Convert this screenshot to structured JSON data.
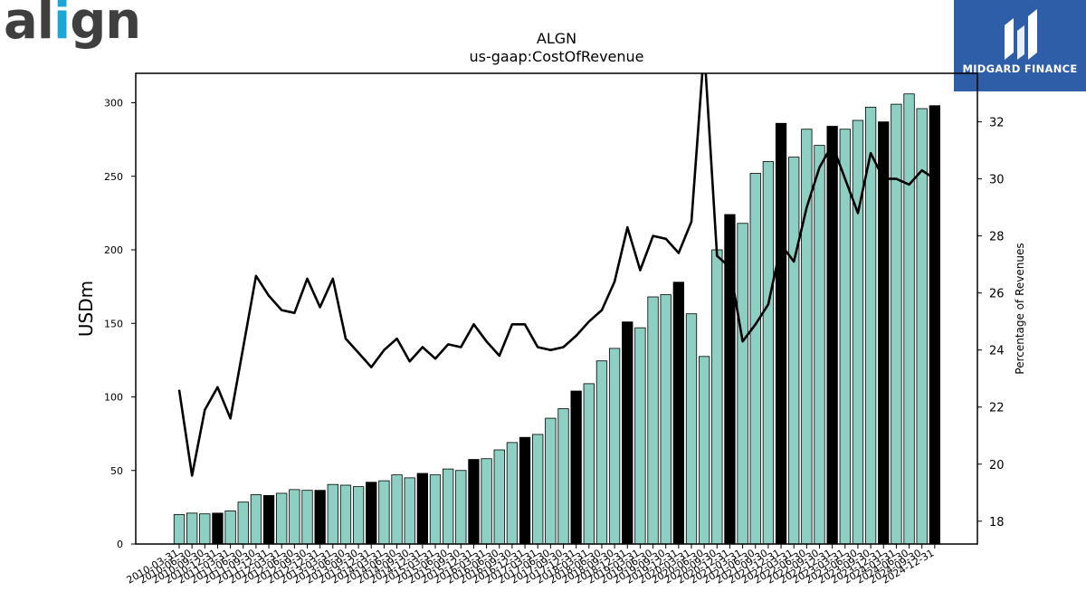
{
  "logo": {
    "text_start": "al",
    "text_dot": "i",
    "text_end": "gn"
  },
  "sponsor": {
    "name": "MIDGARD FINANCE"
  },
  "colors": {
    "bar_normal": "#8ecfc4",
    "bar_q4": "#000000",
    "line": "#000000",
    "sponsor_bg": "#2e5ea8",
    "logo_accent": "#1aa7d8"
  },
  "chart_data": {
    "type": "bar",
    "title": "ALGN",
    "subtitle": "us-gaap:CostOfRevenue",
    "ylabel": "USDm",
    "y2label": "Percentage of Revenues",
    "ylim": [
      0,
      320
    ],
    "y2lim": [
      17.2,
      33.7
    ],
    "yticks": [
      0,
      50,
      100,
      150,
      200,
      250,
      300
    ],
    "y2ticks": [
      18,
      20,
      22,
      24,
      26,
      28,
      30,
      32
    ],
    "grid": false,
    "legend": "none",
    "categories": [
      "2010-03-31",
      "2010-06-30",
      "2010-09-30",
      "2010-12-31",
      "2011-03-31",
      "2011-06-30",
      "2011-09-30",
      "2011-12-31",
      "2012-03-31",
      "2012-06-30",
      "2012-09-30",
      "2012-12-31",
      "2013-03-31",
      "2013-06-30",
      "2013-09-30",
      "2013-12-31",
      "2014-03-31",
      "2014-06-30",
      "2014-09-30",
      "2014-12-31",
      "2015-03-31",
      "2015-06-30",
      "2015-09-30",
      "2015-12-31",
      "2016-03-31",
      "2016-06-30",
      "2016-09-30",
      "2016-12-31",
      "2017-03-31",
      "2017-06-30",
      "2017-09-30",
      "2017-12-31",
      "2018-03-31",
      "2018-06-30",
      "2018-09-30",
      "2018-12-31",
      "2019-03-31",
      "2019-06-30",
      "2019-09-30",
      "2019-12-31",
      "2020-03-31",
      "2020-06-30",
      "2020-09-30",
      "2020-12-31",
      "2021-03-31",
      "2021-06-30",
      "2021-09-30",
      "2021-12-31",
      "2022-03-31",
      "2022-06-30",
      "2022-09-30",
      "2022-12-31",
      "2023-03-31",
      "2023-06-30",
      "2023-09-30",
      "2023-12-31",
      "2024-03-31",
      "2024-06-30",
      "2024-09-30",
      "2024-12-31"
    ],
    "series": [
      {
        "axis": "left",
        "kind": "bar",
        "values": [
          20,
          21,
          20.5,
          21,
          22.5,
          28.5,
          33.5,
          33,
          34.5,
          37,
          36.5,
          36.5,
          40.5,
          40,
          39,
          42,
          43,
          47,
          45,
          48,
          47,
          51,
          50,
          57.5,
          58,
          64,
          69,
          72.5,
          74.5,
          85.5,
          92,
          104,
          109,
          124.5,
          133,
          151,
          147,
          168,
          169.5,
          178,
          156.5,
          127.5,
          200,
          224,
          218,
          252,
          260,
          286,
          263,
          282,
          271,
          284,
          282,
          288,
          297,
          287,
          299,
          306,
          296,
          298
        ]
      },
      {
        "axis": "right",
        "kind": "line",
        "values": [
          22.6,
          19.6,
          21.9,
          22.7,
          21.6,
          24.1,
          26.6,
          25.9,
          25.4,
          25.3,
          26.5,
          25.5,
          26.5,
          24.4,
          23.9,
          23.4,
          24,
          24.4,
          23.6,
          24.1,
          23.7,
          24.2,
          24.1,
          24.9,
          24.3,
          23.8,
          24.9,
          24.9,
          24.1,
          24,
          24.1,
          24.5,
          25,
          25.4,
          26.4,
          28.3,
          26.8,
          28,
          27.9,
          27.4,
          28.5,
          34.6,
          27.3,
          26.9,
          24.3,
          24.9,
          25.6,
          27.7,
          27.1,
          29,
          30.4,
          31.2,
          30,
          28.8,
          30.9,
          30,
          30,
          29.8,
          30.3,
          30
        ]
      }
    ]
  }
}
